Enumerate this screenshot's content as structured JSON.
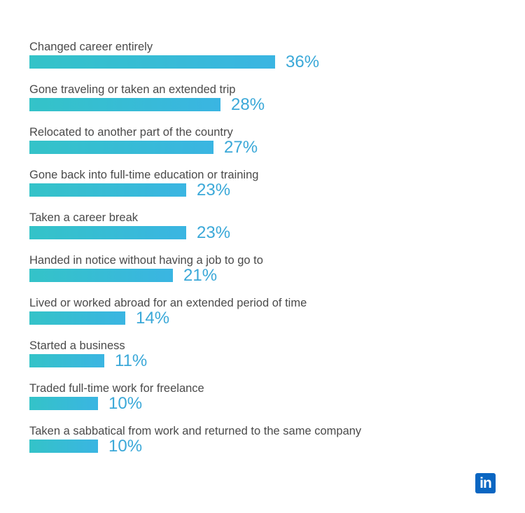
{
  "chart_data": {
    "type": "bar",
    "orientation": "horizontal",
    "categories": [
      "Changed career entirely",
      "Gone traveling or taken an extended trip",
      "Relocated to another part of the country",
      "Gone back into full-time education or training",
      "Taken a career break",
      "Handed in notice without having a job to go to",
      "Lived or worked abroad for an extended period of time",
      "Started a business",
      "Traded full-time work for freelance",
      "Taken a sabbatical from work and returned to the same company"
    ],
    "values": [
      36,
      28,
      27,
      23,
      23,
      21,
      14,
      11,
      10,
      10
    ],
    "value_labels": [
      "36%",
      "28%",
      "27%",
      "23%",
      "23%",
      "21%",
      "14%",
      "11%",
      "10%",
      "10%"
    ],
    "unit": "%",
    "xlim": [
      0,
      36
    ],
    "colors": {
      "bar_start": "#34c3c8",
      "bar_end": "#3ab5e2",
      "value_text": "#3aa8d8",
      "label_text": "#4a4a4a"
    }
  },
  "logo": {
    "text": "in",
    "color": "#0a66c2"
  }
}
